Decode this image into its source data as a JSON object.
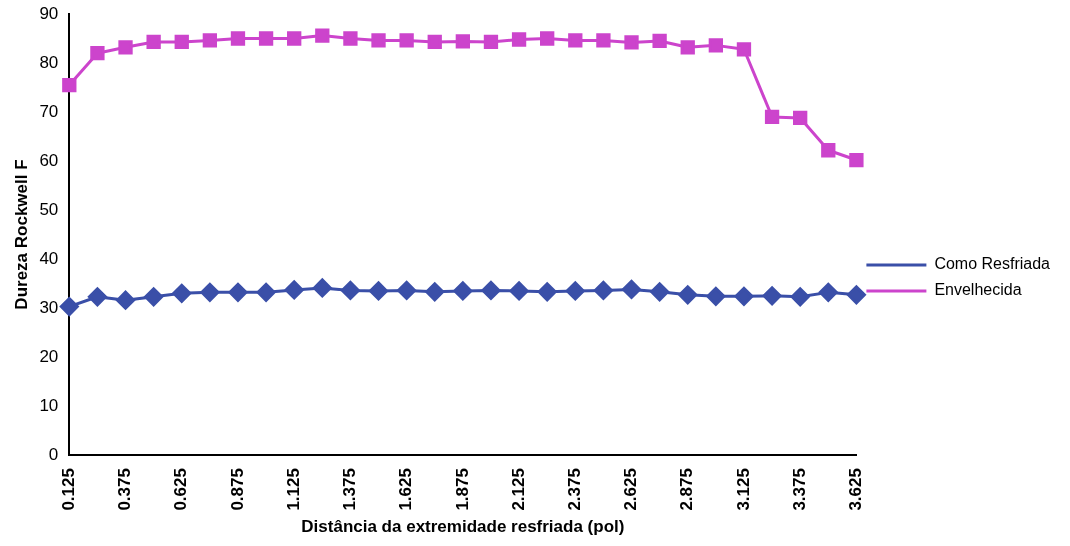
{
  "chart_data": {
    "type": "line",
    "xlabel": "Distância da extremidade resfriada (pol)",
    "ylabel": "Dureza Rockwell F",
    "categories": [
      "0.125",
      null,
      "0.375",
      null,
      "0.625",
      null,
      "0.875",
      null,
      "1.125",
      null,
      "1.375",
      null,
      "1.625",
      null,
      "1.875",
      null,
      "2.125",
      null,
      "2.375",
      null,
      "2.625",
      null,
      "2.875",
      null,
      "3.125",
      null,
      "3.375",
      null,
      "3.625"
    ],
    "series": [
      {
        "name": "Como Resfriada",
        "color": "#3a4fa8",
        "marker": "diamond",
        "values": [
          30.3,
          32.3,
          31.6,
          32.3,
          33,
          33.2,
          33.2,
          33.2,
          33.7,
          34.1,
          33.6,
          33.5,
          33.6,
          33.3,
          33.5,
          33.6,
          33.5,
          33.3,
          33.5,
          33.6,
          33.8,
          33.3,
          32.7,
          32.4,
          32.4,
          32.5,
          32.3,
          33.2,
          32.7
        ]
      },
      {
        "name": "Envelhecida",
        "color": "#cc44cc",
        "marker": "square",
        "values": [
          75.5,
          82,
          83.2,
          84.3,
          84.3,
          84.6,
          85,
          85,
          85,
          85.6,
          85,
          84.6,
          84.6,
          84.3,
          84.4,
          84.3,
          84.8,
          85,
          84.6,
          84.6,
          84.2,
          84.5,
          83.2,
          83.6,
          82.8,
          69,
          68.8,
          62.2,
          60.2
        ]
      }
    ],
    "ylim": [
      0,
      90
    ],
    "yticks": [
      0,
      10,
      20,
      30,
      40,
      50,
      60,
      70,
      80,
      90
    ],
    "grid": false,
    "legend": "right",
    "line_style": "solid"
  }
}
